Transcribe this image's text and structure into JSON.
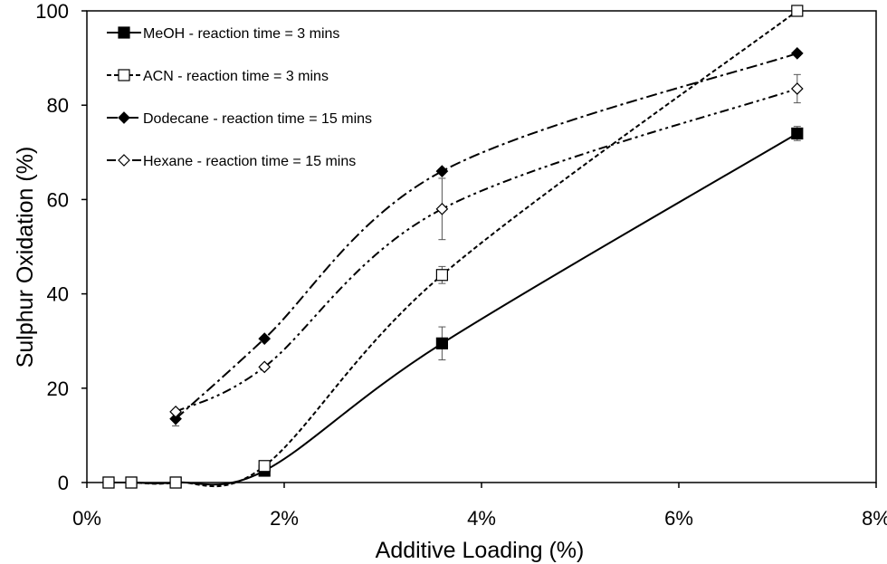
{
  "chart_data": {
    "type": "line",
    "title": "",
    "xlabel": "Additive Loading (%)",
    "ylabel": "Sulphur Oxidation (%)",
    "xlim": [
      0,
      8
    ],
    "ylim": [
      0,
      100
    ],
    "x_ticks": [
      0,
      2,
      4,
      6,
      8
    ],
    "x_tick_labels": [
      "0%",
      "2%",
      "4%",
      "6%",
      "8%"
    ],
    "y_ticks": [
      0,
      20,
      40,
      60,
      80,
      100
    ],
    "y_tick_labels": [
      "0",
      "20",
      "40",
      "60",
      "80",
      "100"
    ],
    "grid": false,
    "legend_position": "top-left",
    "series": [
      {
        "name": "MeOH - reaction time = 3 mins",
        "marker": "filled-square",
        "line": "solid",
        "x": [
          0.22,
          0.45,
          0.9,
          1.8,
          3.6,
          7.2
        ],
        "y": [
          0,
          0,
          0,
          2.5,
          29.5,
          74
        ],
        "err": [
          0,
          0,
          0,
          0.5,
          3.5,
          1.5
        ]
      },
      {
        "name": "ACN - reaction time = 3 mins",
        "marker": "open-square",
        "line": "dashed",
        "x": [
          0.22,
          0.45,
          0.9,
          1.8,
          3.6,
          7.2
        ],
        "y": [
          0,
          0,
          0,
          3.5,
          44,
          100
        ],
        "err": [
          0,
          0,
          0,
          0.5,
          1.8,
          0.5
        ]
      },
      {
        "name": "Dodecane - reaction time = 15 mins",
        "marker": "filled-diamond",
        "line": "dash-dot",
        "x": [
          0.9,
          1.8,
          3.6,
          7.2
        ],
        "y": [
          13.5,
          30.5,
          66,
          91
        ],
        "err": [
          1.5,
          0.5,
          0.5,
          0.5
        ]
      },
      {
        "name": "Hexane - reaction time = 15 mins",
        "marker": "open-diamond",
        "line": "dash-dot-dot",
        "x": [
          0.9,
          1.8,
          3.6,
          7.2
        ],
        "y": [
          15,
          24.5,
          58,
          83.5
        ],
        "err": [
          0.5,
          0.5,
          6.5,
          3
        ]
      }
    ]
  }
}
